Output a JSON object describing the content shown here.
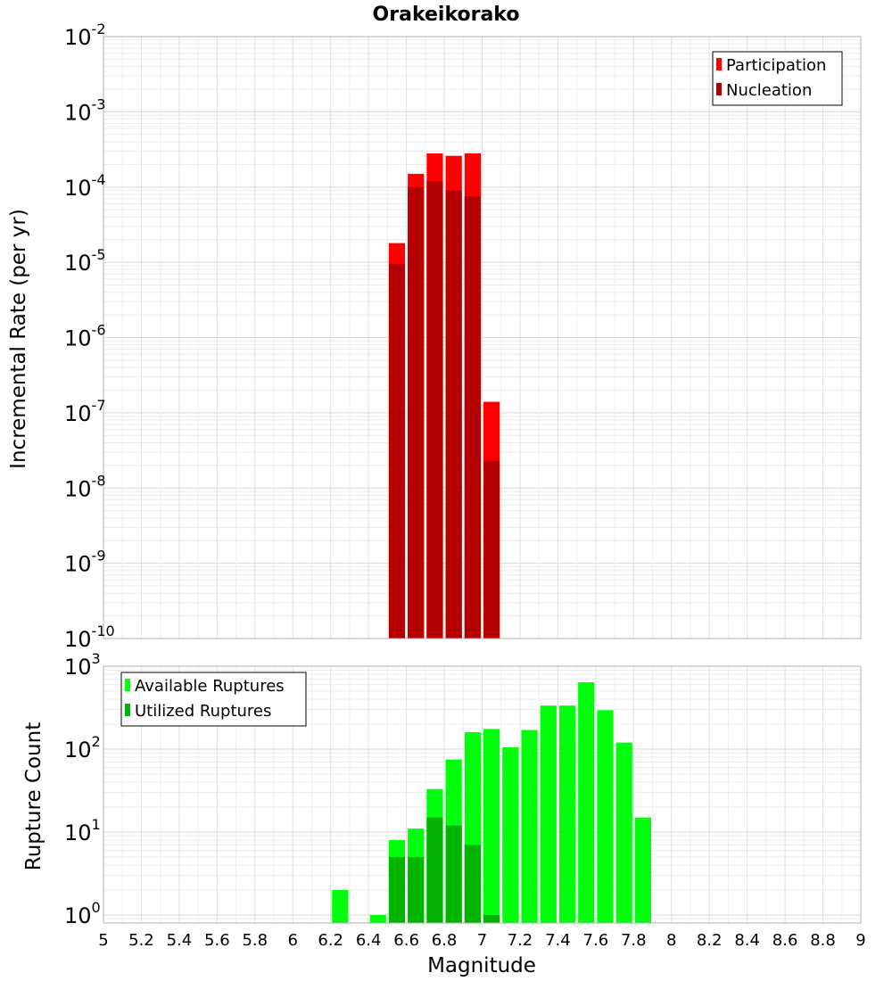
{
  "chart_data": {
    "title": "Orakeikorako",
    "x_axis": {
      "label": "Magnitude",
      "range": [
        5,
        9
      ],
      "tick_labels": [
        "5",
        "5.2",
        "5.4",
        "5.6",
        "5.8",
        "6",
        "6.2",
        "6.4",
        "6.6",
        "6.8",
        "7",
        "7.2",
        "7.4",
        "7.6",
        "7.8",
        "8",
        "8.2",
        "8.4",
        "8.6",
        "8.8",
        "9"
      ]
    },
    "bin_width": 0.1,
    "panels": [
      {
        "type": "bar",
        "name": "rate-panel",
        "ylabel": "Incremental Rate (per yr)",
        "yscale": "log",
        "ylim": [
          1e-10,
          0.01
        ],
        "decade_ticks": [
          {
            "base": "10",
            "exp": "-10"
          },
          {
            "base": "10",
            "exp": "-9"
          },
          {
            "base": "10",
            "exp": "-8"
          },
          {
            "base": "10",
            "exp": "-7"
          },
          {
            "base": "10",
            "exp": "-6"
          },
          {
            "base": "10",
            "exp": "-5"
          },
          {
            "base": "10",
            "exp": "-4"
          },
          {
            "base": "10",
            "exp": "-3"
          },
          {
            "base": "10",
            "exp": "-2"
          }
        ],
        "legend": {
          "placement": "top-right",
          "entries": [
            "Participation",
            "Nucleation"
          ]
        },
        "series": [
          {
            "name": "Participation",
            "color": "#ff0000",
            "points": [
              {
                "x": 6.55,
                "y": 1.8e-05
              },
              {
                "x": 6.65,
                "y": 0.00015
              },
              {
                "x": 6.75,
                "y": 0.00028
              },
              {
                "x": 6.85,
                "y": 0.00026
              },
              {
                "x": 6.95,
                "y": 0.00028
              },
              {
                "x": 7.05,
                "y": 1.4e-07
              }
            ]
          },
          {
            "name": "Nucleation",
            "color": "#b40000",
            "points": [
              {
                "x": 6.55,
                "y": 9.5e-06
              },
              {
                "x": 6.65,
                "y": 0.0001
              },
              {
                "x": 6.75,
                "y": 0.00012
              },
              {
                "x": 6.85,
                "y": 9e-05
              },
              {
                "x": 6.95,
                "y": 7.5e-05
              },
              {
                "x": 7.05,
                "y": 2.3e-08
              }
            ]
          }
        ]
      },
      {
        "type": "bar",
        "name": "count-panel",
        "ylabel": "Rupture Count",
        "yscale": "log",
        "ylim": [
          0.8,
          1000
        ],
        "decade_ticks": [
          {
            "base": "10",
            "exp": "0"
          },
          {
            "base": "10",
            "exp": "1"
          },
          {
            "base": "10",
            "exp": "2"
          },
          {
            "base": "10",
            "exp": "3"
          }
        ],
        "legend": {
          "placement": "top-left",
          "entries": [
            "Available Ruptures",
            "Utilized Ruptures"
          ]
        },
        "series": [
          {
            "name": "Available Ruptures",
            "color": "#00ff0c",
            "points": [
              {
                "x": 6.25,
                "y": 2
              },
              {
                "x": 6.45,
                "y": 1
              },
              {
                "x": 6.55,
                "y": 8
              },
              {
                "x": 6.65,
                "y": 11
              },
              {
                "x": 6.75,
                "y": 33
              },
              {
                "x": 6.85,
                "y": 75
              },
              {
                "x": 6.95,
                "y": 160
              },
              {
                "x": 7.05,
                "y": 175
              },
              {
                "x": 7.15,
                "y": 105
              },
              {
                "x": 7.25,
                "y": 170
              },
              {
                "x": 7.35,
                "y": 335
              },
              {
                "x": 7.45,
                "y": 335
              },
              {
                "x": 7.55,
                "y": 640
              },
              {
                "x": 7.65,
                "y": 295
              },
              {
                "x": 7.75,
                "y": 120
              },
              {
                "x": 7.85,
                "y": 15
              }
            ]
          },
          {
            "name": "Utilized Ruptures",
            "color": "#00b400",
            "points": [
              {
                "x": 6.55,
                "y": 5
              },
              {
                "x": 6.65,
                "y": 5
              },
              {
                "x": 6.75,
                "y": 15
              },
              {
                "x": 6.85,
                "y": 12
              },
              {
                "x": 6.95,
                "y": 7
              },
              {
                "x": 7.05,
                "y": 1
              }
            ]
          }
        ]
      }
    ]
  }
}
